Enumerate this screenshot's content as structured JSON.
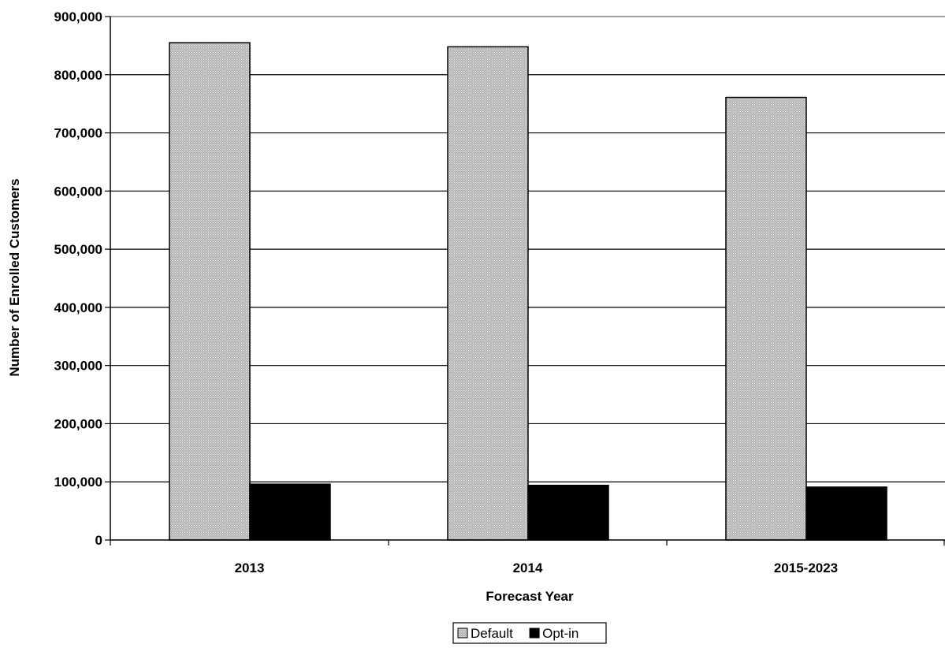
{
  "chart_data": {
    "type": "bar",
    "title": "",
    "xlabel": "Forecast Year",
    "ylabel": "Number of Enrolled Customers",
    "categories": [
      "2013",
      "2014",
      "2015-2023"
    ],
    "series": [
      {
        "name": "Default",
        "values": [
          855000,
          848000,
          761000
        ],
        "color": "#c8c8c8",
        "pattern": "dotted-gray"
      },
      {
        "name": "Opt-in",
        "values": [
          96000,
          94000,
          91000
        ],
        "color": "#000000",
        "pattern": "solid"
      }
    ],
    "ylim": [
      0,
      900000
    ],
    "yticks": [
      "0",
      "100,000",
      "200,000",
      "300,000",
      "400,000",
      "500,000",
      "600,000",
      "700,000",
      "800,000",
      "900,000"
    ],
    "ytick_values": [
      0,
      100000,
      200000,
      300000,
      400000,
      500000,
      600000,
      700000,
      800000,
      900000
    ],
    "grid": true,
    "legend_position": "bottom-center"
  }
}
